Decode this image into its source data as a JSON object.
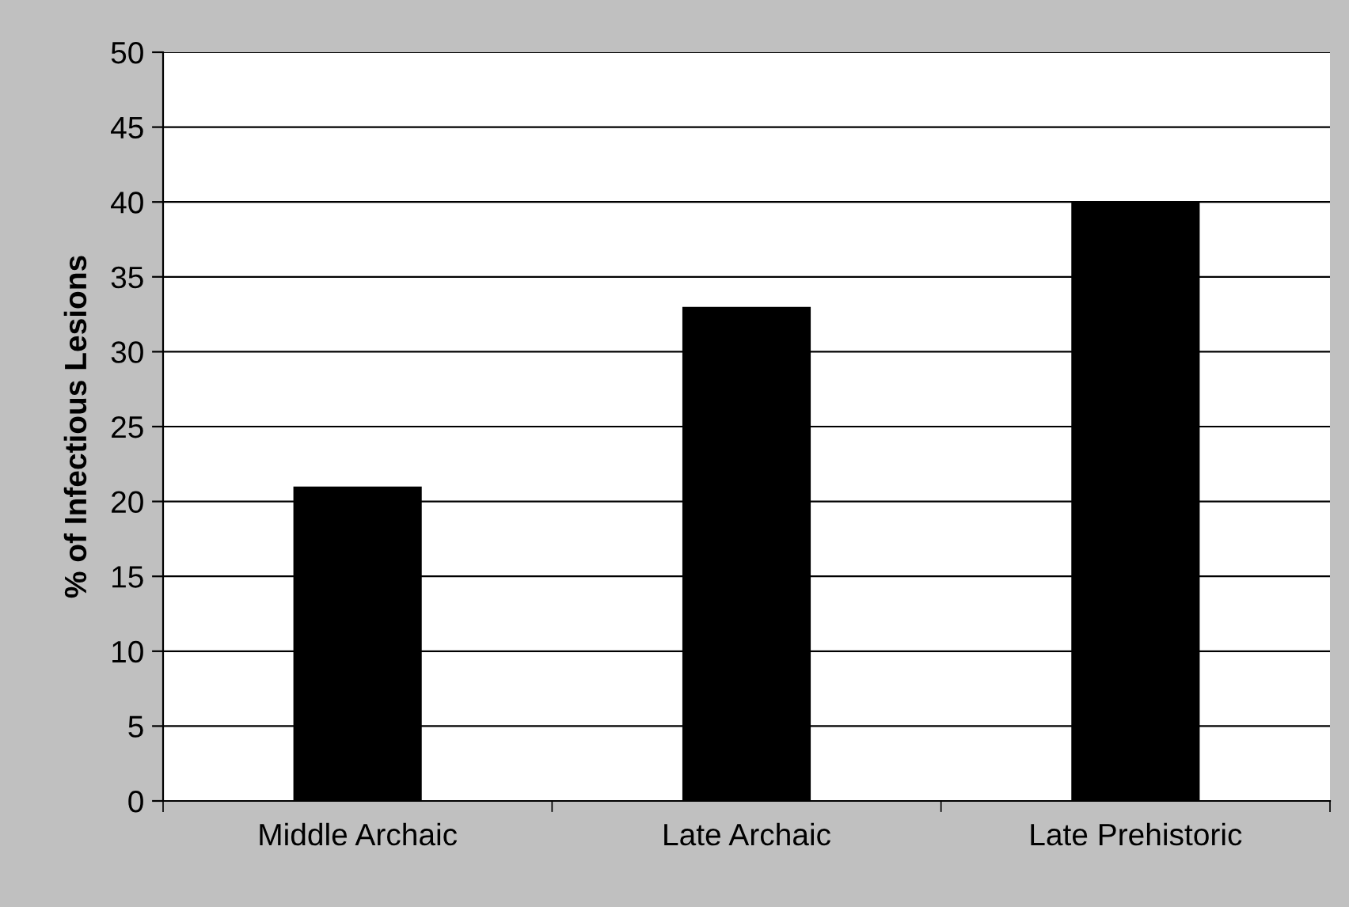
{
  "chart_data": {
    "type": "bar",
    "ylabel": "% of Infectious Lesions",
    "categories": [
      "Middle Archaic",
      "Late Archaic",
      "Late Prehistoric"
    ],
    "values": [
      21,
      33,
      40
    ],
    "color": "#000000",
    "ylim": [
      0,
      50
    ],
    "yticks": [
      0,
      5,
      10,
      15,
      20,
      25,
      30,
      35,
      40,
      45,
      50
    ],
    "grid": "y",
    "legend": false
  }
}
